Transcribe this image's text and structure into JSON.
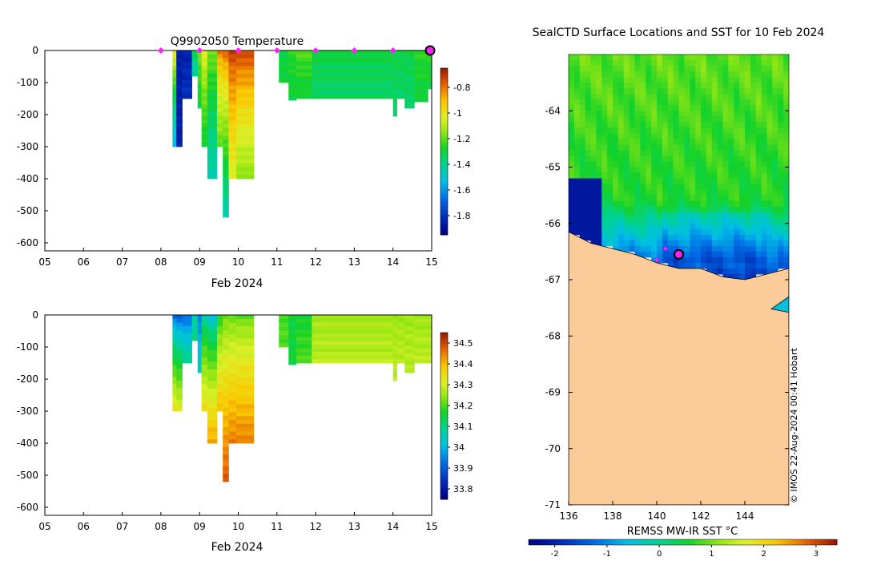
{
  "chart_data": [
    {
      "type": "heatmap",
      "title": "Q9902050  Temperature",
      "xlabel": "Feb 2024",
      "ylabel": "",
      "x_ticks": [
        "05",
        "06",
        "07",
        "08",
        "09",
        "10",
        "11",
        "12",
        "13",
        "14",
        "15"
      ],
      "xlim": [
        5,
        15
      ],
      "y_ticks": [
        0,
        -100,
        -200,
        -300,
        -400,
        -500,
        -600
      ],
      "ylim": [
        -625,
        0
      ],
      "colorbar": {
        "ticks": [
          -0.8,
          -1,
          -1.2,
          -1.4,
          -1.6,
          -1.8
        ],
        "tick_labels": [
          "-0.8",
          "-1",
          "-1.2",
          "-1.4",
          "-1.6",
          "-1.8"
        ],
        "range": [
          -1.95,
          -0.65
        ]
      },
      "profile_markers": [
        8.0,
        9.0,
        10.0,
        11.0,
        12.0,
        13.0,
        14.0
      ],
      "last_position_marker": 15.0,
      "columns": [
        {
          "x0": 8.3,
          "x1": 8.4,
          "depth": 300,
          "top": -0.95,
          "bottom": -1.55
        },
        {
          "x0": 8.4,
          "x1": 8.55,
          "depth": 300,
          "top": -1.85,
          "bottom": -1.85
        },
        {
          "x0": 8.55,
          "x1": 8.8,
          "depth": 150,
          "top": -1.85,
          "bottom": -1.8
        },
        {
          "x0": 8.8,
          "x1": 8.95,
          "depth": 80,
          "top": -1.3,
          "bottom": -1.45
        },
        {
          "x0": 8.95,
          "x1": 9.05,
          "depth": 180,
          "top": -1.15,
          "bottom": -1.3
        },
        {
          "x0": 9.05,
          "x1": 9.2,
          "depth": 300,
          "top": -1.0,
          "bottom": -1.3
        },
        {
          "x0": 9.2,
          "x1": 9.45,
          "depth": 400,
          "top": -1.15,
          "bottom": -1.45
        },
        {
          "x0": 9.45,
          "x1": 9.6,
          "depth": 300,
          "top": -0.8,
          "bottom": -1.2
        },
        {
          "x0": 9.6,
          "x1": 9.75,
          "depth": 520,
          "top": -0.75,
          "bottom": -1.45
        },
        {
          "x0": 9.75,
          "x1": 9.95,
          "depth": 400,
          "top": -0.7,
          "bottom": -1.05
        },
        {
          "x0": 9.95,
          "x1": 10.4,
          "depth": 400,
          "top": -0.7,
          "bottom": -1.15
        },
        {
          "x0": 11.05,
          "x1": 11.3,
          "depth": 100,
          "top": -1.3,
          "bottom": -1.3
        },
        {
          "x0": 11.3,
          "x1": 11.5,
          "depth": 155,
          "top": -1.25,
          "bottom": -1.3
        },
        {
          "x0": 11.5,
          "x1": 11.9,
          "depth": 150,
          "top": -1.2,
          "bottom": -1.3
        },
        {
          "x0": 11.9,
          "x1": 14.0,
          "depth": 150,
          "top": -1.3,
          "bottom": -1.35
        },
        {
          "x0": 14.0,
          "x1": 14.1,
          "depth": 205,
          "top": -1.3,
          "bottom": -1.35
        },
        {
          "x0": 14.1,
          "x1": 14.3,
          "depth": 150,
          "top": -1.3,
          "bottom": -1.35
        },
        {
          "x0": 14.3,
          "x1": 14.55,
          "depth": 180,
          "top": -1.3,
          "bottom": -1.35
        },
        {
          "x0": 14.55,
          "x1": 14.9,
          "depth": 160,
          "top": -1.25,
          "bottom": -1.3
        },
        {
          "x0": 14.9,
          "x1": 15.0,
          "depth": 120,
          "top": -1.25,
          "bottom": -1.3
        }
      ]
    },
    {
      "type": "heatmap",
      "title": "",
      "xlabel": "Feb 2024",
      "ylabel": "",
      "x_ticks": [
        "05",
        "06",
        "07",
        "08",
        "09",
        "10",
        "11",
        "12",
        "13",
        "14",
        "15"
      ],
      "xlim": [
        5,
        15
      ],
      "y_ticks": [
        0,
        -100,
        -200,
        -300,
        -400,
        -500,
        -600
      ],
      "ylim": [
        -625,
        0
      ],
      "colorbar": {
        "ticks": [
          34.5,
          34.4,
          34.3,
          34.2,
          34.1,
          34,
          33.9,
          33.8
        ],
        "tick_labels": [
          "34.5",
          "34.4",
          "34.3",
          "34.2",
          "34.1",
          "34",
          "33.9",
          "33.8"
        ],
        "range": [
          33.75,
          34.55
        ]
      },
      "columns": [
        {
          "x0": 8.3,
          "x1": 8.4,
          "depth": 300,
          "top": 33.9,
          "bottom": 34.35
        },
        {
          "x0": 8.4,
          "x1": 8.55,
          "depth": 300,
          "top": 33.88,
          "bottom": 34.32
        },
        {
          "x0": 8.55,
          "x1": 8.8,
          "depth": 150,
          "top": 33.9,
          "bottom": 34.1
        },
        {
          "x0": 8.8,
          "x1": 8.95,
          "depth": 80,
          "top": 34.05,
          "bottom": 34.1
        },
        {
          "x0": 8.95,
          "x1": 9.05,
          "depth": 180,
          "top": 33.92,
          "bottom": 34.05
        },
        {
          "x0": 9.05,
          "x1": 9.2,
          "depth": 300,
          "top": 34.05,
          "bottom": 34.35
        },
        {
          "x0": 9.2,
          "x1": 9.45,
          "depth": 400,
          "top": 34.0,
          "bottom": 34.42
        },
        {
          "x0": 9.45,
          "x1": 9.6,
          "depth": 300,
          "top": 34.15,
          "bottom": 34.4
        },
        {
          "x0": 9.6,
          "x1": 9.75,
          "depth": 520,
          "top": 34.2,
          "bottom": 34.48
        },
        {
          "x0": 9.75,
          "x1": 9.95,
          "depth": 400,
          "top": 34.2,
          "bottom": 34.45
        },
        {
          "x0": 9.95,
          "x1": 10.4,
          "depth": 400,
          "top": 34.2,
          "bottom": 34.45
        },
        {
          "x0": 11.05,
          "x1": 11.3,
          "depth": 100,
          "top": 34.2,
          "bottom": 34.2
        },
        {
          "x0": 11.3,
          "x1": 11.5,
          "depth": 155,
          "top": 34.15,
          "bottom": 34.15
        },
        {
          "x0": 11.5,
          "x1": 11.9,
          "depth": 150,
          "top": 34.15,
          "bottom": 34.2
        },
        {
          "x0": 11.9,
          "x1": 14.0,
          "depth": 150,
          "top": 34.25,
          "bottom": 34.28
        },
        {
          "x0": 14.0,
          "x1": 14.1,
          "depth": 205,
          "top": 34.25,
          "bottom": 34.28
        },
        {
          "x0": 14.1,
          "x1": 14.3,
          "depth": 150,
          "top": 34.25,
          "bottom": 34.28
        },
        {
          "x0": 14.3,
          "x1": 14.55,
          "depth": 180,
          "top": 34.25,
          "bottom": 34.28
        },
        {
          "x0": 14.55,
          "x1": 15.0,
          "depth": 150,
          "top": 34.25,
          "bottom": 34.28
        }
      ]
    },
    {
      "type": "heatmap",
      "title": "SealCTD Surface Locations and SST for 10 Feb 2024",
      "xlabel": "",
      "ylabel": "",
      "x_ticks": [
        136,
        138,
        140,
        142,
        144
      ],
      "xlim": [
        136,
        146
      ],
      "y_ticks": [
        -64,
        -65,
        -66,
        -67,
        -68,
        -69,
        -70,
        -71
      ],
      "ylim": [
        -71,
        -63.0
      ],
      "colorbar": {
        "label": "REMSS MW-IR SST °C",
        "ticks": [
          -2,
          -1,
          0,
          1,
          2,
          3
        ],
        "tick_labels": [
          "-2",
          "-1",
          "0",
          "1",
          "2",
          "3"
        ],
        "range": [
          -2.5,
          3.4
        ]
      },
      "land_color": "#fbcb9a",
      "seal_position": {
        "lon": 141.0,
        "lat": -66.55
      },
      "seal_track": [
        {
          "lon": 140.4,
          "lat": -66.45
        },
        {
          "lon": 140.0,
          "lat": -66.65
        }
      ],
      "credit": "© IMOS 22-Aug-2024 00:41 Hobart"
    }
  ]
}
